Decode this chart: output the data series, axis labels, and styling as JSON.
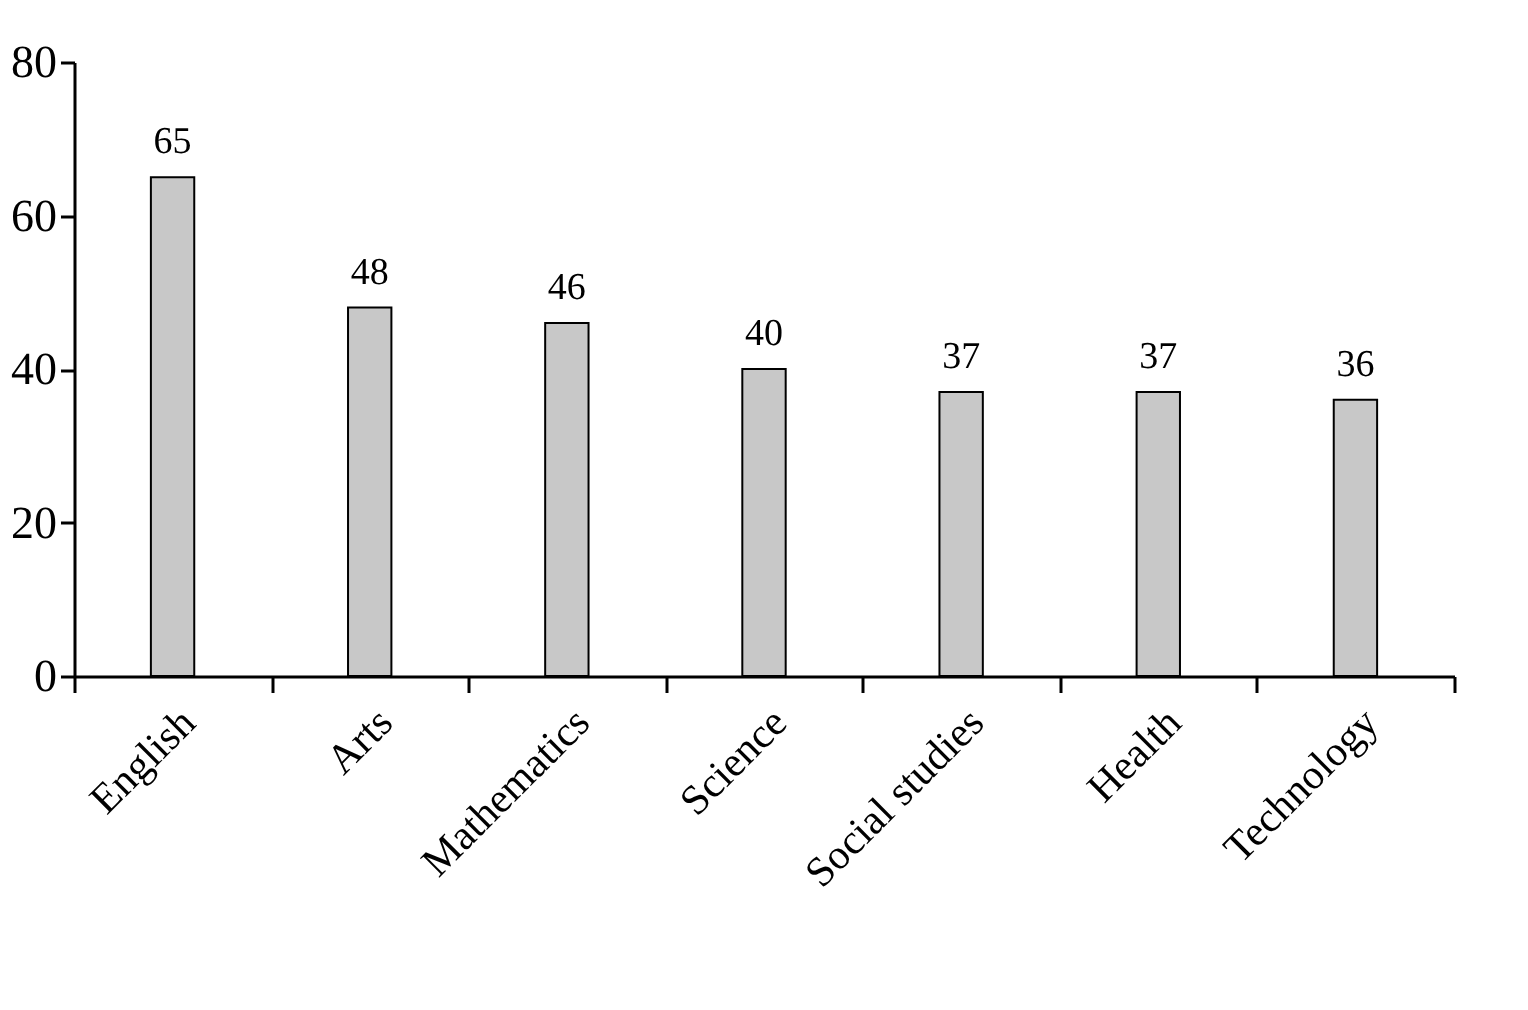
{
  "chart_data": {
    "type": "bar",
    "categories": [
      "English",
      "Arts",
      "Mathematics",
      "Science",
      "Social studies",
      "Health",
      "Technology"
    ],
    "values": [
      65,
      48,
      46,
      40,
      37,
      37,
      36
    ],
    "color": "#c8c8c8",
    "ylim": [
      0,
      80
    ],
    "yticks": [
      0,
      20,
      40,
      60,
      80
    ],
    "data_labels": true,
    "grid": false
  }
}
